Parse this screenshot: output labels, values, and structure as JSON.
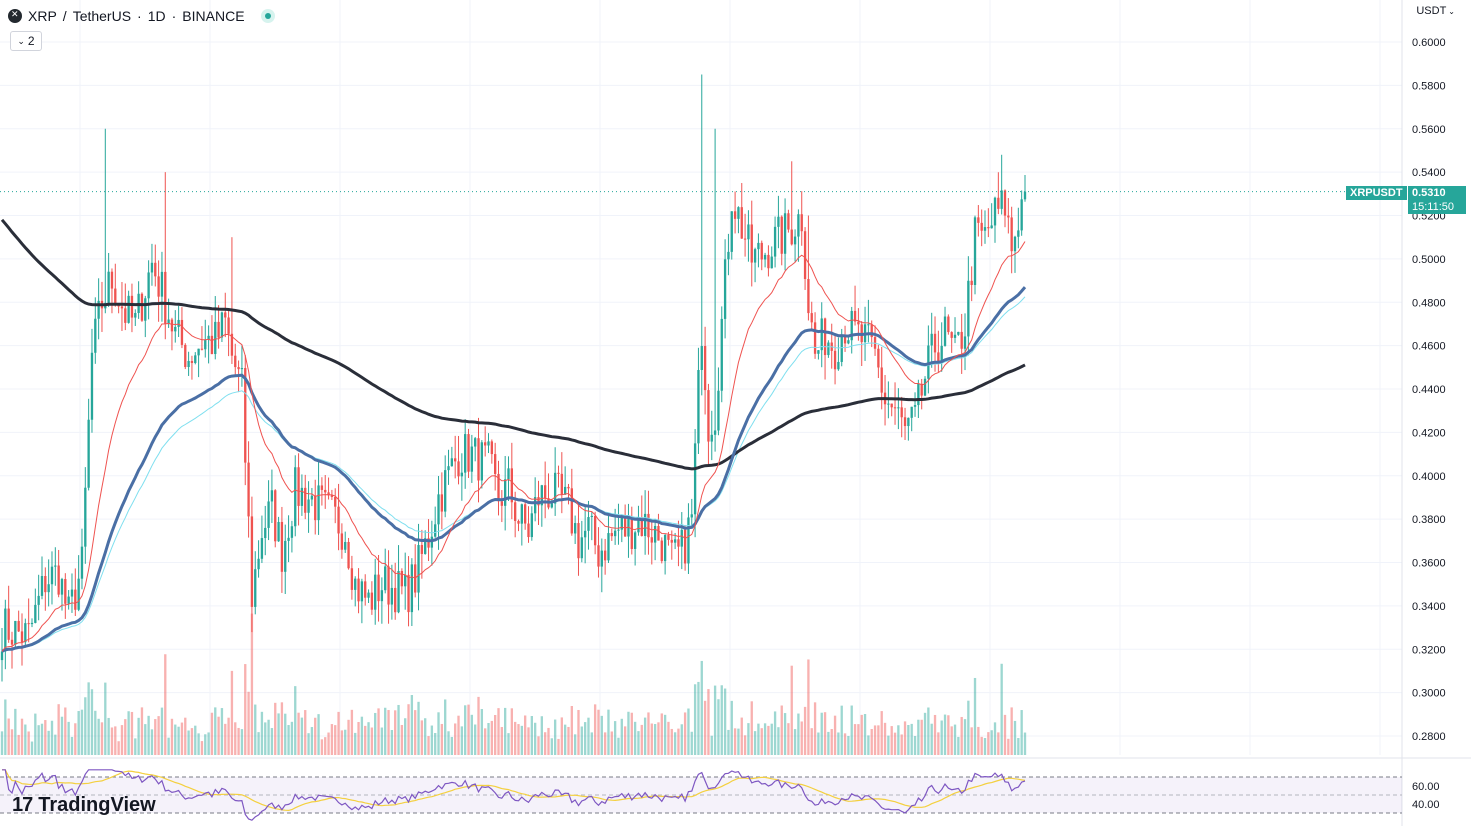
{
  "header": {
    "symbol": "XRP",
    "separator": "/",
    "quote": "TetherUS",
    "dot1": "·",
    "interval": "1D",
    "dot2": "·",
    "exchange": "BINANCE",
    "collapse_label": "2",
    "currency_label": "USDT"
  },
  "branding": {
    "logo_text": "TradingView"
  },
  "price_tag": {
    "symbol_label": "XRPUSDT",
    "last_price": "0.5310",
    "countdown": "15:11:50"
  },
  "colors": {
    "up": "#26a69a",
    "down": "#ef5350",
    "ema_fast": "#ef5350",
    "ema_mid": "#4a6fa5",
    "ema_light": "#7fdfef",
    "ema_slow": "#2a2e39",
    "rsi_line": "#7e57c2",
    "rsi_ma": "#f4d03f",
    "rsi_band": "#7e57c2"
  },
  "chart_data": {
    "type": "candlestick",
    "y_axis": {
      "min": 0.27,
      "max": 0.605,
      "ticks": [
        "0.6000",
        "0.5800",
        "0.5600",
        "0.5400",
        "0.5200",
        "0.5000",
        "0.4800",
        "0.4600",
        "0.4400",
        "0.4200",
        "0.4000",
        "0.3800",
        "0.3600",
        "0.3400",
        "0.3200",
        "0.3000",
        "0.2800"
      ]
    },
    "last_close": 0.531,
    "anchors": [
      [
        0,
        0.33
      ],
      [
        8,
        0.326
      ],
      [
        13,
        0.352
      ],
      [
        17,
        0.355
      ],
      [
        20,
        0.335
      ],
      [
        24,
        0.358
      ],
      [
        27,
        0.455
      ],
      [
        30,
        0.48
      ],
      [
        33,
        0.49
      ],
      [
        37,
        0.475
      ],
      [
        40,
        0.47
      ],
      [
        45,
        0.498
      ],
      [
        48,
        0.485
      ],
      [
        52,
        0.465
      ],
      [
        56,
        0.455
      ],
      [
        60,
        0.462
      ],
      [
        64,
        0.462
      ],
      [
        67,
        0.47
      ],
      [
        69,
        0.455
      ],
      [
        72,
        0.44
      ],
      [
        75,
        0.345
      ],
      [
        78,
        0.375
      ],
      [
        81,
        0.385
      ],
      [
        84,
        0.365
      ],
      [
        88,
        0.393
      ],
      [
        92,
        0.39
      ],
      [
        96,
        0.385
      ],
      [
        100,
        0.38
      ],
      [
        103,
        0.375
      ],
      [
        106,
        0.35
      ],
      [
        110,
        0.342
      ],
      [
        114,
        0.35
      ],
      [
        118,
        0.348
      ],
      [
        121,
        0.345
      ],
      [
        124,
        0.353
      ],
      [
        128,
        0.372
      ],
      [
        131,
        0.39
      ],
      [
        134,
        0.4
      ],
      [
        137,
        0.41
      ],
      [
        140,
        0.41
      ],
      [
        143,
        0.408
      ],
      [
        146,
        0.405
      ],
      [
        149,
        0.39
      ],
      [
        152,
        0.395
      ],
      [
        155,
        0.38
      ],
      [
        158,
        0.375
      ],
      [
        161,
        0.39
      ],
      [
        164,
        0.392
      ],
      [
        167,
        0.39
      ],
      [
        170,
        0.385
      ],
      [
        173,
        0.37
      ],
      [
        176,
        0.375
      ],
      [
        179,
        0.365
      ],
      [
        182,
        0.37
      ],
      [
        185,
        0.375
      ],
      [
        188,
        0.375
      ],
      [
        191,
        0.38
      ],
      [
        195,
        0.375
      ],
      [
        198,
        0.37
      ],
      [
        201,
        0.36
      ],
      [
        204,
        0.365
      ],
      [
        207,
        0.38
      ],
      [
        210,
        0.47
      ],
      [
        212,
        0.425
      ],
      [
        214,
        0.43
      ],
      [
        216,
        0.47
      ],
      [
        219,
        0.53
      ],
      [
        222,
        0.515
      ],
      [
        225,
        0.5
      ],
      [
        228,
        0.502
      ],
      [
        231,
        0.507
      ],
      [
        234,
        0.51
      ],
      [
        237,
        0.515
      ],
      [
        240,
        0.52
      ],
      [
        242,
        0.48
      ],
      [
        244,
        0.455
      ],
      [
        247,
        0.465
      ],
      [
        250,
        0.46
      ],
      [
        253,
        0.47
      ],
      [
        256,
        0.465
      ],
      [
        259,
        0.462
      ],
      [
        262,
        0.455
      ],
      [
        265,
        0.435
      ],
      [
        268,
        0.43
      ],
      [
        271,
        0.42
      ],
      [
        274,
        0.425
      ],
      [
        277,
        0.445
      ],
      [
        280,
        0.46
      ],
      [
        283,
        0.465
      ],
      [
        286,
        0.455
      ],
      [
        289,
        0.47
      ],
      [
        292,
        0.51
      ],
      [
        295,
        0.51
      ],
      [
        298,
        0.52
      ],
      [
        301,
        0.525
      ],
      [
        303,
        0.505
      ],
      [
        305,
        0.52
      ],
      [
        307,
        0.531
      ]
    ],
    "indicators": {
      "ema_fast": {
        "period": 20
      },
      "ema_mid": {
        "period": 50
      },
      "ema_light": {
        "period": 60
      },
      "ema_slow": {
        "period": 200,
        "start_value": 0.52
      }
    },
    "rsi": {
      "ticks": [
        "60.00",
        "40.00"
      ],
      "upper_band": 70,
      "lower_band": 30,
      "min": 20,
      "max": 80
    }
  }
}
